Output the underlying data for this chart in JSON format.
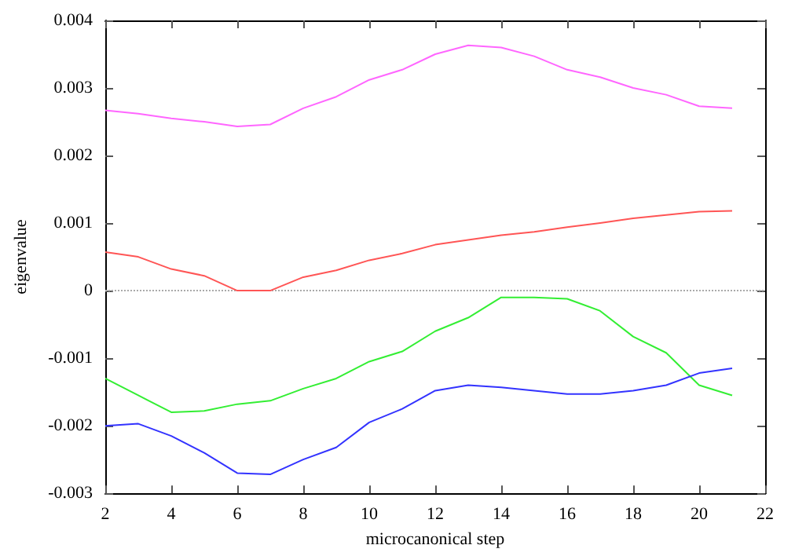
{
  "chart_data": {
    "type": "line",
    "xlabel": "microcanonical step",
    "ylabel": "eigenvalue",
    "x": [
      2,
      3,
      4,
      5,
      6,
      7,
      8,
      9,
      10,
      11,
      12,
      13,
      14,
      15,
      16,
      17,
      18,
      19,
      20,
      21
    ],
    "series": [
      {
        "color": "#ff66ff",
        "values": [
          0.00267,
          0.00262,
          0.00255,
          0.0025,
          0.00243,
          0.00246,
          0.0027,
          0.00287,
          0.00312,
          0.00327,
          0.0035,
          0.00363,
          0.0036,
          0.00347,
          0.00327,
          0.00316,
          0.003,
          0.0029,
          0.00273,
          0.0027
        ]
      },
      {
        "color": "#ff5555",
        "values": [
          0.00057,
          0.0005,
          0.00032,
          0.00022,
          0,
          0,
          0.0002,
          0.0003,
          0.00045,
          0.00055,
          0.00068,
          0.00075,
          0.00082,
          0.00087,
          0.00094,
          0.001,
          0.00107,
          0.00112,
          0.00117,
          0.00118
        ]
      },
      {
        "color": "#33ee33",
        "values": [
          -0.0013,
          -0.00155,
          -0.0018,
          -0.00178,
          -0.00168,
          -0.00163,
          -0.00145,
          -0.0013,
          -0.00105,
          -0.0009,
          -0.0006,
          -0.0004,
          -0.0001,
          -0.0001,
          -0.00012,
          -0.0003,
          -0.00068,
          -0.00092,
          -0.0014,
          -0.00155
        ]
      },
      {
        "color": "#3333ff",
        "values": [
          -0.002,
          -0.00197,
          -0.00215,
          -0.0024,
          -0.0027,
          -0.00272,
          -0.0025,
          -0.00232,
          -0.00195,
          -0.00175,
          -0.00148,
          -0.0014,
          -0.00143,
          -0.00148,
          -0.00153,
          -0.00153,
          -0.00148,
          -0.0014,
          -0.00122,
          -0.00115
        ]
      }
    ],
    "xlim": [
      2,
      22
    ],
    "xticks": [
      2,
      4,
      6,
      8,
      10,
      12,
      14,
      16,
      18,
      20,
      22
    ],
    "ylim": [
      -0.003,
      0.004
    ],
    "yticks": [
      -0.003,
      -0.002,
      -0.001,
      0,
      0.001,
      0.002,
      0.003,
      0.004
    ],
    "ref_lines": [
      {
        "axis": "y",
        "value": 0,
        "color": "#aaaaaa",
        "line_style": "dotted"
      }
    ],
    "grid": false,
    "marker": "none",
    "line_style": "solid"
  }
}
